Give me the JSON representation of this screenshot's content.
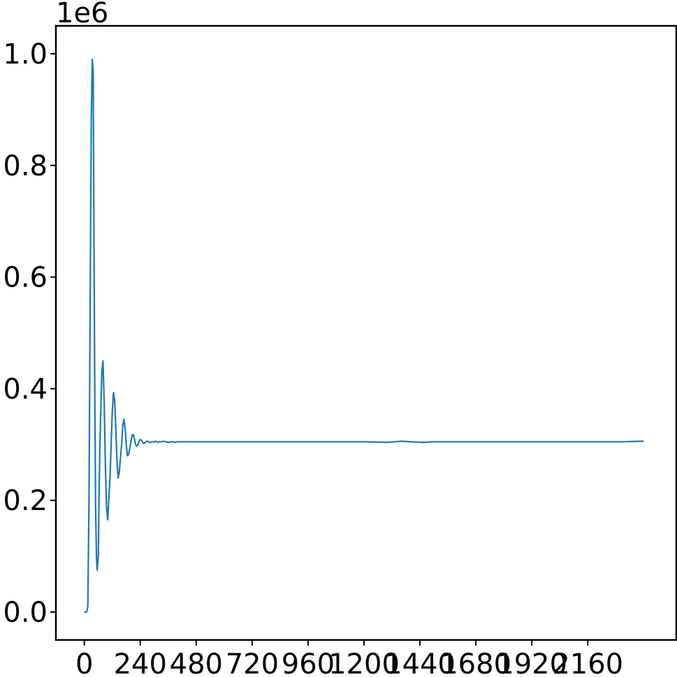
{
  "chart_data": {
    "type": "line",
    "title": "",
    "xlabel": "",
    "ylabel": "",
    "y_offset_label": "1e6",
    "xlim": [
      -122,
      2540
    ],
    "ylim": [
      -0.05,
      1.05
    ],
    "x_ticks": [
      0,
      240,
      480,
      720,
      960,
      1200,
      1440,
      1680,
      1920,
      2160
    ],
    "x_tick_labels": [
      "0",
      "240",
      "480",
      "720",
      "960",
      "1200",
      "1440",
      "1680",
      "1920",
      "2160"
    ],
    "y_ticks": [
      0.0,
      0.2,
      0.4,
      0.6,
      0.8,
      1.0
    ],
    "y_tick_labels": [
      "0.0",
      "0.2",
      "0.4",
      "0.6",
      "0.8",
      "1.0"
    ],
    "grid": false,
    "legend": "none",
    "series": [
      {
        "color": "#1f77b4",
        "x": [
          0,
          10,
          15,
          20,
          25,
          30,
          34,
          38,
          40,
          44,
          48,
          52,
          55,
          60,
          63,
          67,
          70,
          75,
          80,
          85,
          90,
          95,
          100,
          110,
          115,
          120,
          125,
          130,
          135,
          140,
          145,
          150,
          160,
          165,
          170,
          175,
          180,
          185,
          190,
          200,
          205,
          210,
          215,
          220,
          225,
          230,
          235,
          240,
          245,
          250,
          255,
          260,
          265,
          270,
          275,
          280,
          285,
          290,
          300,
          305,
          310,
          315,
          320,
          325,
          330,
          340,
          350,
          360,
          370,
          380,
          390,
          400,
          450,
          500,
          600,
          700,
          800,
          900,
          1000,
          1100,
          1200,
          1300,
          1330,
          1360,
          1400,
          1450,
          1500,
          1600,
          1700,
          1800,
          1900,
          2000,
          2100,
          2200,
          2300,
          2400
        ],
        "y": [
          0.0,
          0.0,
          0.01,
          0.2,
          0.55,
          0.88,
          0.99,
          0.97,
          0.8,
          0.45,
          0.2,
          0.1,
          0.075,
          0.1,
          0.2,
          0.3,
          0.35,
          0.43,
          0.45,
          0.38,
          0.27,
          0.19,
          0.165,
          0.24,
          0.3,
          0.36,
          0.393,
          0.38,
          0.33,
          0.27,
          0.24,
          0.25,
          0.3,
          0.335,
          0.345,
          0.33,
          0.3,
          0.28,
          0.282,
          0.305,
          0.317,
          0.318,
          0.31,
          0.3,
          0.297,
          0.3,
          0.306,
          0.309,
          0.308,
          0.304,
          0.302,
          0.303,
          0.305,
          0.306,
          0.305,
          0.304,
          0.304,
          0.305,
          0.305,
          0.306,
          0.305,
          0.304,
          0.305,
          0.305,
          0.305,
          0.306,
          0.305,
          0.304,
          0.305,
          0.305,
          0.304,
          0.305,
          0.305,
          0.305,
          0.305,
          0.305,
          0.305,
          0.305,
          0.305,
          0.305,
          0.305,
          0.304,
          0.305,
          0.306,
          0.305,
          0.304,
          0.305,
          0.305,
          0.305,
          0.305,
          0.305,
          0.305,
          0.305,
          0.305,
          0.305,
          0.306
        ]
      }
    ]
  }
}
